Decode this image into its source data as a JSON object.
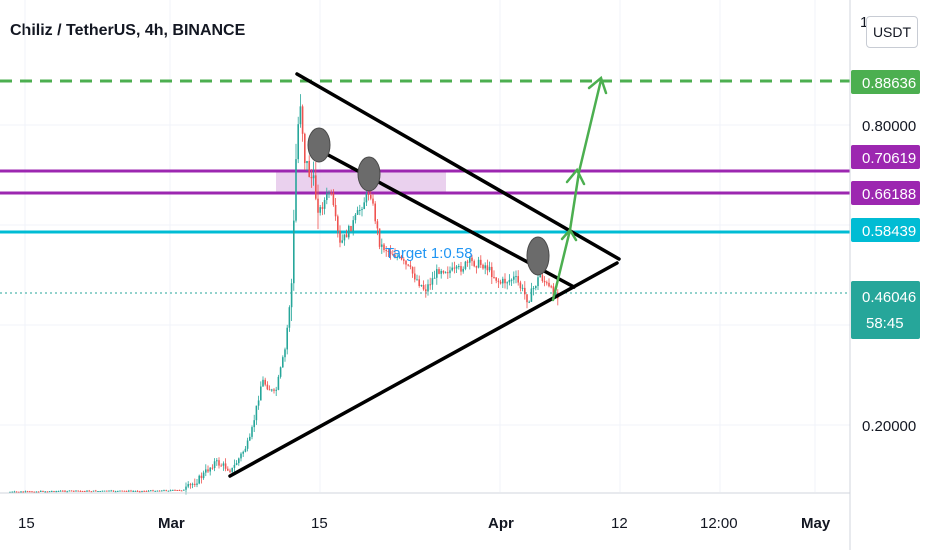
{
  "header": {
    "title": "Chiliz / TetherUS, 4h, BINANCE",
    "currency": "USDT",
    "scale_marker": "1"
  },
  "chart_data": {
    "type": "candlestick",
    "x_ticks": [
      "15",
      "Mar",
      "15",
      "Apr",
      "12",
      "12:00",
      "May"
    ],
    "y_ticks": [
      "0.80000",
      "0.20000"
    ],
    "price_lines": [
      {
        "value": "0.88636",
        "color": "#4caf50",
        "style": "dashed"
      },
      {
        "value": "0.70619",
        "color": "#9c27b0",
        "style": "solid"
      },
      {
        "value": "0.66188",
        "color": "#9c27b0",
        "style": "solid"
      },
      {
        "value": "0.58439",
        "color": "#00bcd4",
        "style": "solid"
      }
    ],
    "current_price": {
      "value": "0.46046",
      "countdown": "58:45",
      "color": "#26a69a"
    },
    "annotation": "Target 1:0.58",
    "colors": {
      "up": "#26a69a",
      "down": "#ef5350",
      "trendline": "#000000",
      "arrow": "#4caf50"
    }
  }
}
